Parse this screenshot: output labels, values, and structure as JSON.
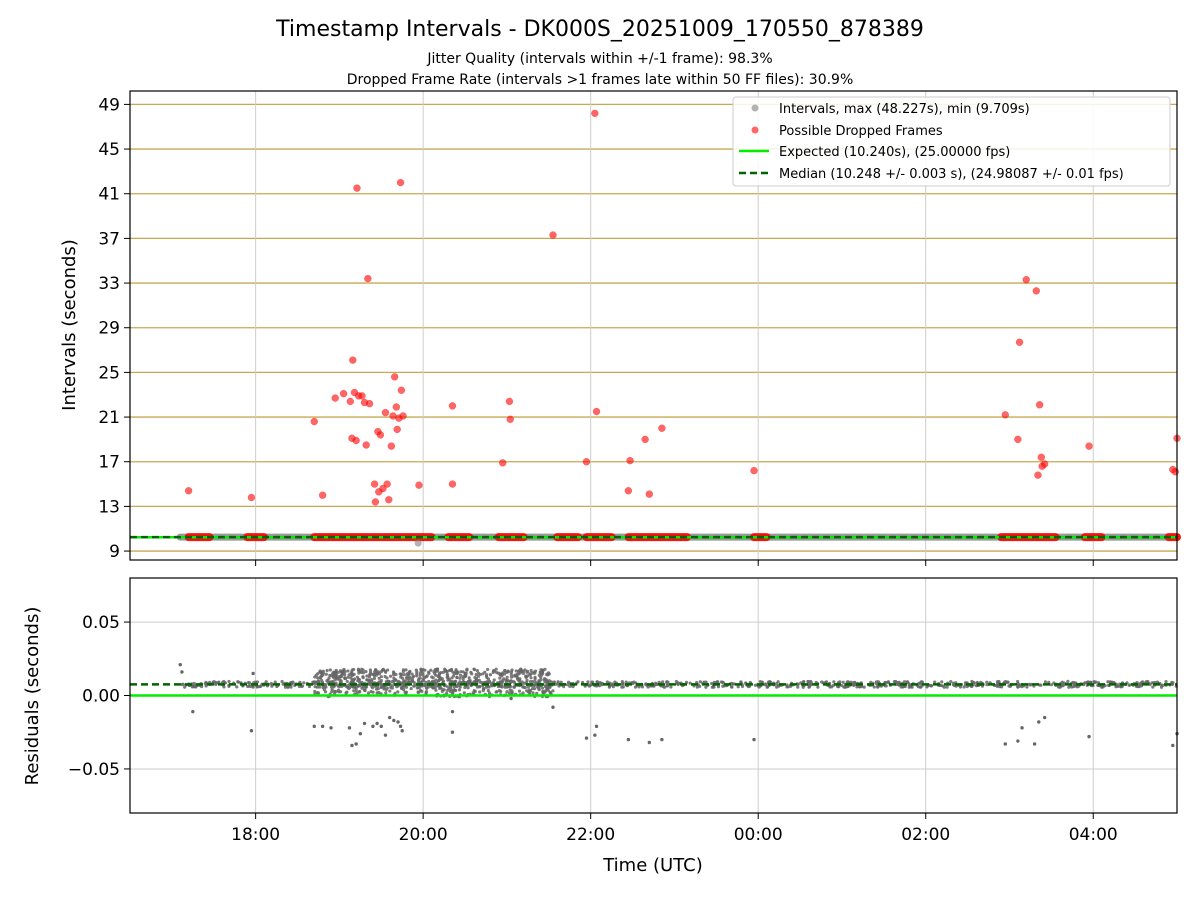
{
  "title": "Timestamp Intervals - DK000S_20251009_170550_878389",
  "subtitle_1": "Jitter Quality (intervals within +/-1 frame): 98.3%",
  "subtitle_2": "Dropped Frame Rate (intervals >1 frames late within 50 FF files): 30.9%",
  "colors": {
    "intervals": "#808080",
    "dropped": "#ff0000",
    "expected": "#00ee00",
    "median": "#006400",
    "hgrid": "#c8a850",
    "vgrid": "#cccccc",
    "residual_points": "#666666"
  },
  "chart_data": [
    {
      "type": "scatter",
      "title": "Timestamp Intervals - DK000S_20251009_170550_878389",
      "xlabel": "",
      "ylabel": "Intervals (seconds)",
      "x_unit": "hours since 00:00 UTC of start day",
      "xlim": [
        16.5,
        29.0
      ],
      "ylim": [
        8.2,
        50.2
      ],
      "yticks": [
        9,
        13,
        17,
        21,
        25,
        29,
        33,
        37,
        41,
        45,
        49
      ],
      "xticks": [
        18,
        20,
        22,
        24,
        26,
        28
      ],
      "xtick_labels": [
        "18:00",
        "20:00",
        "22:00",
        "00:00",
        "02:00",
        "04:00"
      ],
      "legend_position": "top-right",
      "legend": {
        "intervals": "Intervals, max (48.227s), min (9.709s)",
        "dropped": "Possible Dropped Frames",
        "expected": "Expected (10.240s), (25.00000 fps)",
        "median": "Median (10.248 +/- 0.003 s), (24.98087 +/- 0.01 fps)"
      },
      "expected": 10.24,
      "median": 10.248,
      "intervals_baseline": {
        "x_range": [
          17.1,
          29.0
        ],
        "value": 10.248
      },
      "interval_outliers": [
        [
          19.94,
          9.71
        ]
      ],
      "dropped_baseline_segments": [
        [
          17.2,
          17.45
        ],
        [
          17.9,
          18.1
        ],
        [
          18.7,
          20.1
        ],
        [
          20.3,
          20.55
        ],
        [
          20.9,
          21.2
        ],
        [
          21.6,
          21.85
        ],
        [
          21.95,
          22.25
        ],
        [
          22.45,
          23.15
        ],
        [
          23.95,
          24.1
        ],
        [
          26.9,
          27.55
        ],
        [
          27.9,
          28.1
        ],
        [
          28.9,
          29.0
        ]
      ],
      "dropped_points": [
        [
          17.2,
          14.4
        ],
        [
          17.95,
          13.8
        ],
        [
          18.7,
          20.6
        ],
        [
          18.8,
          14.0
        ],
        [
          18.95,
          22.7
        ],
        [
          19.05,
          23.1
        ],
        [
          19.13,
          22.4
        ],
        [
          19.15,
          19.1
        ],
        [
          19.16,
          26.1
        ],
        [
          19.18,
          23.2
        ],
        [
          19.2,
          18.9
        ],
        [
          19.21,
          41.5
        ],
        [
          19.23,
          22.9
        ],
        [
          19.27,
          22.9
        ],
        [
          19.3,
          22.3
        ],
        [
          19.32,
          18.5
        ],
        [
          19.34,
          33.4
        ],
        [
          19.36,
          22.2
        ],
        [
          19.42,
          15.0
        ],
        [
          19.43,
          13.4
        ],
        [
          19.46,
          19.7
        ],
        [
          19.47,
          14.3
        ],
        [
          19.49,
          19.4
        ],
        [
          19.52,
          14.6
        ],
        [
          19.55,
          21.4
        ],
        [
          19.57,
          15.0
        ],
        [
          19.59,
          13.6
        ],
        [
          19.62,
          18.4
        ],
        [
          19.64,
          21.1
        ],
        [
          19.66,
          24.6
        ],
        [
          19.68,
          21.9
        ],
        [
          19.69,
          19.9
        ],
        [
          19.71,
          20.9
        ],
        [
          19.73,
          42.0
        ],
        [
          19.74,
          23.4
        ],
        [
          19.76,
          21.1
        ],
        [
          19.95,
          14.9
        ],
        [
          20.35,
          22.0
        ],
        [
          20.35,
          15.0
        ],
        [
          20.95,
          16.9
        ],
        [
          21.03,
          22.4
        ],
        [
          21.04,
          20.8
        ],
        [
          21.55,
          37.3
        ],
        [
          21.95,
          17.0
        ],
        [
          22.05,
          48.2
        ],
        [
          22.07,
          21.5
        ],
        [
          22.45,
          14.4
        ],
        [
          22.47,
          17.1
        ],
        [
          22.65,
          19.0
        ],
        [
          22.7,
          14.1
        ],
        [
          22.85,
          20.0
        ],
        [
          23.95,
          16.2
        ],
        [
          26.95,
          21.2
        ],
        [
          27.1,
          19.0
        ],
        [
          27.12,
          27.7
        ],
        [
          27.2,
          33.3
        ],
        [
          27.32,
          32.3
        ],
        [
          27.34,
          15.8
        ],
        [
          27.36,
          22.1
        ],
        [
          27.38,
          17.4
        ],
        [
          27.39,
          16.6
        ],
        [
          27.42,
          16.8
        ],
        [
          27.95,
          18.4
        ],
        [
          28.95,
          16.3
        ],
        [
          28.98,
          16.1
        ],
        [
          29.0,
          19.1
        ]
      ]
    },
    {
      "type": "scatter",
      "xlabel": "Time (UTC)",
      "ylabel": "Residuals (seconds)",
      "xlim": [
        16.5,
        29.0
      ],
      "ylim": [
        -0.08,
        0.08
      ],
      "yticks": [
        -0.05,
        0.0,
        0.05
      ],
      "ytick_labels": [
        "−0.05",
        "0.00",
        "0.05"
      ],
      "xticks": [
        18,
        20,
        22,
        24,
        26,
        28
      ],
      "xtick_labels": [
        "18:00",
        "20:00",
        "22:00",
        "00:00",
        "02:00",
        "04:00"
      ],
      "zero_line": 0.0,
      "median_offset": 0.0076,
      "baseline_band": {
        "x_range": [
          17.1,
          29.0
        ],
        "center": 0.0076,
        "spread": 0.002
      },
      "noisy_band": {
        "x_range": [
          18.7,
          21.55
        ],
        "low": -0.001,
        "high": 0.018
      },
      "outlier_points": [
        [
          17.1,
          0.021
        ],
        [
          17.12,
          0.016
        ],
        [
          17.25,
          -0.011
        ],
        [
          17.95,
          -0.024
        ],
        [
          17.97,
          0.015
        ],
        [
          18.7,
          -0.021
        ],
        [
          18.8,
          -0.021
        ],
        [
          18.9,
          -0.022
        ],
        [
          19.12,
          -0.022
        ],
        [
          19.15,
          -0.034
        ],
        [
          19.2,
          -0.033
        ],
        [
          19.25,
          -0.026
        ],
        [
          19.3,
          -0.019
        ],
        [
          19.4,
          -0.021
        ],
        [
          19.45,
          -0.019
        ],
        [
          19.5,
          -0.021
        ],
        [
          19.55,
          -0.027
        ],
        [
          19.6,
          -0.015
        ],
        [
          19.65,
          -0.017
        ],
        [
          19.7,
          -0.018
        ],
        [
          19.73,
          -0.021
        ],
        [
          19.75,
          -0.024
        ],
        [
          20.35,
          -0.025
        ],
        [
          20.35,
          -0.011
        ],
        [
          21.05,
          -0.002
        ],
        [
          21.55,
          -0.008
        ],
        [
          21.95,
          -0.029
        ],
        [
          22.05,
          -0.027
        ],
        [
          22.07,
          -0.021
        ],
        [
          22.45,
          -0.03
        ],
        [
          22.7,
          -0.032
        ],
        [
          22.85,
          -0.03
        ],
        [
          23.95,
          -0.03
        ],
        [
          26.95,
          -0.033
        ],
        [
          27.1,
          -0.031
        ],
        [
          27.15,
          -0.022
        ],
        [
          27.3,
          -0.033
        ],
        [
          27.35,
          -0.018
        ],
        [
          27.42,
          -0.015
        ],
        [
          27.95,
          -0.028
        ],
        [
          28.95,
          -0.034
        ],
        [
          29.0,
          -0.026
        ]
      ]
    }
  ]
}
